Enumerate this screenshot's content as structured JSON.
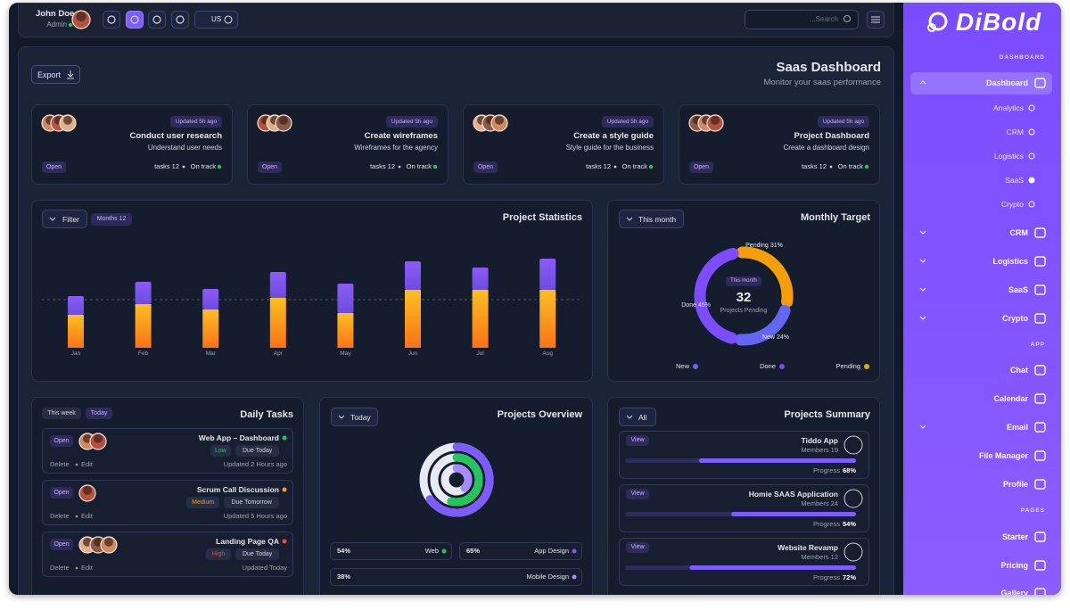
{
  "topbar": {
    "user_name": "John Doe",
    "user_role": "Admin",
    "language": "US",
    "search_placeholder": "...Search"
  },
  "header": {
    "export": "Export",
    "title": "Saas Dashboard",
    "subtitle": "Monitor your saas performance"
  },
  "task_cards": [
    {
      "updated": "Updated 5h ago",
      "title": "Conduct user research",
      "subtitle": "Understand user needs",
      "status": "Open",
      "tasks": "tasks 12",
      "progress": "On track"
    },
    {
      "updated": "Updated 5h ago",
      "title": "Create wireframes",
      "subtitle": "Wireframes for the agency",
      "status": "Open",
      "tasks": "tasks 12",
      "progress": "On track"
    },
    {
      "updated": "Updated 5h ago",
      "title": "Create a style guide",
      "subtitle": "Style guide for the business",
      "status": "Open",
      "tasks": "tasks 12",
      "progress": "On track"
    },
    {
      "updated": "Updated 5h ago",
      "title": "Project Dashboard",
      "subtitle": "Create a dashboard design",
      "status": "Open",
      "tasks": "tasks 12",
      "progress": "On track"
    }
  ],
  "project_statistics": {
    "title": "Project Statistics",
    "filter": "Filter",
    "badge": "Months 12",
    "chart": {
      "type": "bar",
      "categories": [
        "Jan",
        "Feb",
        "Mar",
        "Apr",
        "May",
        "Jun",
        "Jul",
        "Aug"
      ],
      "series": [
        {
          "color": "#f59e0b",
          "values": [
            37,
            49,
            43,
            56,
            39,
            65,
            65,
            65
          ]
        },
        {
          "color": "#7c5cfc",
          "values": [
            21,
            25,
            23,
            29,
            33,
            32,
            25,
            35
          ]
        }
      ]
    }
  },
  "monthly_target": {
    "title": "Monthly Target",
    "button": "This month",
    "center_label": "This month",
    "center_value": 32,
    "center_caption": "Projects Pending",
    "segments": [
      {
        "name": "Pending",
        "value": 31,
        "value_label": "31%",
        "color": "#f59e0b"
      },
      {
        "name": "New",
        "value": 24,
        "value_label": "24%",
        "color": "#6366f1"
      },
      {
        "name": "Done",
        "value": 45,
        "value_label": "45%",
        "color": "#7c4dff"
      }
    ]
  },
  "daily_tasks": {
    "title": "Daily Tasks",
    "tabs": [
      "This week",
      "Today"
    ],
    "tasks": [
      {
        "status": "Open",
        "title": "Web App – Dashboard",
        "dot_color": "#22c55e",
        "priority": "Low",
        "priority_color": "#22c55e",
        "due": "Due Today",
        "actions": [
          "Delete",
          "Edit"
        ],
        "updated": "Updated 2 Hours ago"
      },
      {
        "status": "Open",
        "title": "Scrum Call Discussion",
        "dot_color": "#f59e0b",
        "priority": "Medium",
        "priority_color": "#f59e0b",
        "due": "Due Tomorrow",
        "actions": [
          "Delete",
          "Edit"
        ],
        "updated": "Updated 5 Hours ago"
      },
      {
        "status": "Open",
        "title": "Landing Page QA",
        "dot_color": "#ef4444",
        "priority": "High",
        "priority_color": "#ef4444",
        "due": "Due Today",
        "actions": [
          "Delete",
          "Edit"
        ],
        "updated": "Updated Today"
      }
    ]
  },
  "projects_overview": {
    "title": "Projects Overview",
    "button": "Today",
    "items": [
      {
        "name": "Web",
        "value": 54,
        "value_label": "54%",
        "color": "#22c55e"
      },
      {
        "name": "App Design",
        "value": 65,
        "value_label": "65%",
        "color": "#7c5cfc"
      },
      {
        "name": "Mobile Design",
        "value": 38,
        "value_label": "38%",
        "color": "#a78bfa"
      }
    ]
  },
  "projects_summary": {
    "title": "Projects Summary",
    "button": "All",
    "items": [
      {
        "action": "View",
        "name": "Tiddo App",
        "members": "Members 19",
        "avatar": "A",
        "progress_text": "Progress",
        "progress": 68,
        "progress_label": "68%"
      },
      {
        "action": "View",
        "name": "Homie SAAS Application",
        "members": "Members 24",
        "avatar": "A",
        "progress_text": "Progress",
        "progress": 54,
        "progress_label": "54%"
      },
      {
        "action": "View",
        "name": "Website Revamp",
        "members": "Members 12",
        "avatar": "A",
        "progress_text": "Progress",
        "progress": 72,
        "progress_label": "72%"
      }
    ]
  },
  "sidebar": {
    "logo": "DiBold",
    "entries": [
      {
        "heading": "DASHBOARD"
      },
      {
        "item": "Dashboard",
        "expanded": true
      },
      {
        "sub": "Analytics"
      },
      {
        "sub": "CRM"
      },
      {
        "sub": "Logistics"
      },
      {
        "sub": "SaaS",
        "selected": true
      },
      {
        "sub": "Crypto"
      },
      {
        "item": "CRM",
        "expandable": true
      },
      {
        "item": "Logistics",
        "expandable": true
      },
      {
        "item": "SaaS",
        "expandable": true
      },
      {
        "item": "Crypto",
        "expandable": true
      },
      {
        "heading": "APP"
      },
      {
        "item": "Chat"
      },
      {
        "item": "Calendar"
      },
      {
        "item": "Email",
        "expandable": true
      },
      {
        "item": "File Manager"
      },
      {
        "item": "Profile"
      },
      {
        "heading": "PAGES"
      },
      {
        "item": "Starter"
      },
      {
        "item": "Pricing"
      },
      {
        "item": "Gallery"
      }
    ]
  }
}
